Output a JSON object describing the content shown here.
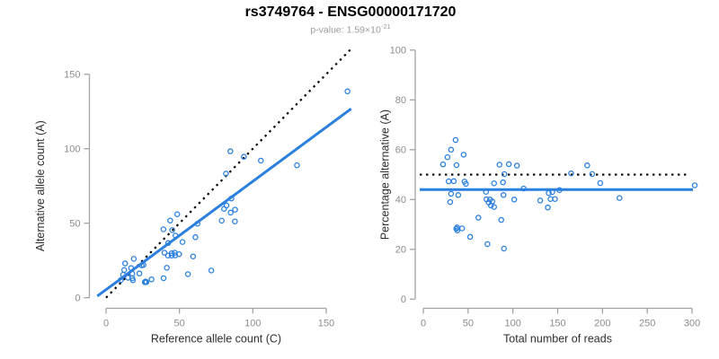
{
  "header": {
    "title": "rs3749764 - ENSG00000171720",
    "subtitle_prefix": "p-value: 1.59×10",
    "subtitle_exponent": "-21"
  },
  "colors": {
    "accent": "#2b80df",
    "dotted_line": "#000000",
    "axis": "#a3a3a3",
    "tick_label": "#8c8c8c",
    "axis_title": "#2e2e2e",
    "title": "#000000",
    "subtitle": "#9b9b9b"
  },
  "chart_data": [
    {
      "type": "scatter",
      "name": "allele-counts",
      "xlabel": "Reference allele count (C)",
      "ylabel": "Alternative allele count (A)",
      "xticks": [
        0,
        50,
        100,
        150
      ],
      "yticks": [
        0,
        50,
        100,
        150
      ],
      "xlim": [
        0,
        167
      ],
      "ylim": [
        0,
        167
      ],
      "lines": [
        {
          "name": "identity-line",
          "style": "dotted",
          "slope": 1,
          "intercept": 0,
          "x_range": [
            0,
            166.5
          ]
        },
        {
          "name": "regression-line",
          "style": "solid",
          "slope": 0.727,
          "intercept": 5.4,
          "x_range": [
            -6,
            167
          ]
        }
      ],
      "points": [
        [
          13,
          23
        ],
        [
          12.4,
          18.6
        ],
        [
          11.6,
          15.4
        ],
        [
          18.9,
          26.1
        ],
        [
          10.1,
          11.9
        ],
        [
          17.1,
          19.9
        ],
        [
          39.1,
          45.9
        ],
        [
          43.7,
          51.8
        ],
        [
          48.5,
          56
        ],
        [
          84.7,
          98.3
        ],
        [
          45.1,
          45.4
        ],
        [
          81.7,
          83.3
        ],
        [
          93.9,
          94.6
        ],
        [
          164.5,
          138.5
        ],
        [
          105.5,
          92
        ],
        [
          14.9,
          13.4
        ],
        [
          17.9,
          16.1
        ],
        [
          24.3,
          21.7
        ],
        [
          25.5,
          22
        ],
        [
          42.3,
          36.7
        ],
        [
          47.3,
          41.7
        ],
        [
          17.9,
          13.1
        ],
        [
          22.7,
          16.3
        ],
        [
          18.3,
          11.7
        ],
        [
          39.8,
          30.2
        ],
        [
          42.2,
          28.3
        ],
        [
          44.7,
          29.8
        ],
        [
          44.7,
          28.3
        ],
        [
          46.8,
          30.2
        ],
        [
          47.1,
          28.4
        ],
        [
          49.8,
          29.2
        ],
        [
          52.1,
          37.4
        ],
        [
          60.9,
          40.6
        ],
        [
          62.3,
          49.7
        ],
        [
          80.4,
          59.6
        ],
        [
          82.1,
          61.9
        ],
        [
          85.4,
          66.6
        ],
        [
          84.9,
          57.1
        ],
        [
          87.9,
          59.1
        ],
        [
          78.8,
          51.7
        ],
        [
          87.8,
          51.2
        ],
        [
          130.1,
          88.9
        ],
        [
          41.4,
          20.1
        ],
        [
          59.3,
          27.7
        ],
        [
          26.4,
          10.4
        ],
        [
          27.5,
          10.5
        ],
        [
          26.9,
          10.9
        ],
        [
          31,
          12.3
        ],
        [
          39.2,
          13.1
        ],
        [
          55.8,
          15.8
        ],
        [
          71.7,
          18.3
        ]
      ]
    },
    {
      "type": "scatter",
      "name": "percentage-vs-reads",
      "xlabel": "Total number of reads",
      "ylabel": "Percentage alternative (A)",
      "xticks": [
        0,
        50,
        100,
        150,
        200,
        250,
        300
      ],
      "yticks": [
        0,
        20,
        40,
        60,
        80,
        100
      ],
      "xlim": [
        0,
        305
      ],
      "ylim": [
        0,
        100
      ],
      "lines": [
        {
          "name": "expected-percentage-line",
          "style": "dotted",
          "y": 50,
          "x_range": [
            -4,
            297
          ]
        },
        {
          "name": "mean-percentage-line",
          "style": "solid",
          "y": 44,
          "x_range": [
            -4,
            301
          ]
        }
      ],
      "points": [
        [
          36,
          63.9
        ],
        [
          31,
          60
        ],
        [
          27,
          57
        ],
        [
          45,
          58
        ],
        [
          22,
          54.1
        ],
        [
          37,
          53.8
        ],
        [
          85,
          54
        ],
        [
          95.5,
          54.2
        ],
        [
          104.5,
          53.6
        ],
        [
          183,
          53.7
        ],
        [
          90.5,
          50.2
        ],
        [
          165,
          50.5
        ],
        [
          188.5,
          50.2
        ],
        [
          303,
          45.7
        ],
        [
          197.5,
          46.6
        ],
        [
          28.3,
          47.3
        ],
        [
          34,
          47.4
        ],
        [
          46,
          47.2
        ],
        [
          47.5,
          46.3
        ],
        [
          79,
          46.5
        ],
        [
          89,
          46.9
        ],
        [
          31,
          42.3
        ],
        [
          39,
          41.8
        ],
        [
          30,
          39
        ],
        [
          70,
          43.1
        ],
        [
          70.5,
          40.1
        ],
        [
          74.5,
          40
        ],
        [
          73,
          38.8
        ],
        [
          77,
          39.2
        ],
        [
          75.5,
          37.6
        ],
        [
          79,
          37
        ],
        [
          89.5,
          41.8
        ],
        [
          101.5,
          40
        ],
        [
          112,
          44.4
        ],
        [
          140,
          42.6
        ],
        [
          144,
          43
        ],
        [
          152,
          43.8
        ],
        [
          142,
          40.2
        ],
        [
          147,
          40.2
        ],
        [
          130.5,
          39.6
        ],
        [
          139,
          36.8
        ],
        [
          219,
          40.6
        ],
        [
          61.5,
          32.7
        ],
        [
          87,
          31.8
        ],
        [
          36.8,
          28.3
        ],
        [
          38,
          27.6
        ],
        [
          37.8,
          28.8
        ],
        [
          43.3,
          28.4
        ],
        [
          52.3,
          25
        ],
        [
          71.6,
          22.1
        ],
        [
          90,
          20.3
        ]
      ]
    }
  ]
}
